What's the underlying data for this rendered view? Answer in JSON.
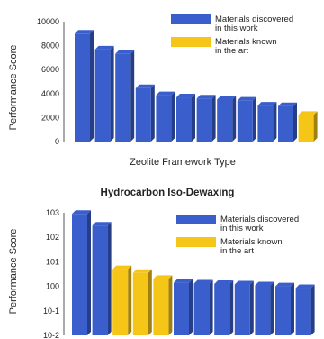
{
  "chart_data": [
    {
      "type": "bar",
      "title": "",
      "xlabel": "Zeolite Framework Type",
      "ylabel": "Performance Score",
      "ylim": [
        0,
        11000
      ],
      "yticks": [
        "0",
        "2000",
        "4000",
        "6000",
        "8000",
        "10000"
      ],
      "legend_position": "top-right",
      "series": [
        {
          "name": "Materials discovered\nin this work",
          "color": "#3a5fcd",
          "values": [
            9900,
            8450,
            8050,
            4900,
            4250,
            4050,
            3950,
            3850,
            3750,
            3300,
            3250,
            null
          ]
        },
        {
          "name": "Materials known\nin the art",
          "color": "#f5c518",
          "values": [
            null,
            null,
            null,
            null,
            null,
            null,
            null,
            null,
            null,
            null,
            null,
            2450
          ]
        }
      ]
    },
    {
      "type": "bar",
      "title": "Hydrocarbon Iso-Dewaxing",
      "xlabel": "",
      "ylabel": "Performance Score",
      "yscale": "log",
      "ylim": [
        0.01,
        1000
      ],
      "yticks": [
        "10-2",
        "10-1",
        "100",
        "101",
        "102",
        "103"
      ],
      "legend_position": "top-right",
      "series": [
        {
          "name": "Materials discovered\nin this work",
          "color": "#3a5fcd",
          "values": [
            900,
            300,
            null,
            null,
            null,
            1.4,
            1.3,
            1.25,
            1.2,
            1.1,
            1.0,
            0.85
          ]
        },
        {
          "name": "Materials known\nin the art",
          "color": "#f5c518",
          "values": [
            null,
            null,
            5,
            3.5,
            2.0,
            null,
            null,
            null,
            null,
            null,
            null,
            null
          ]
        }
      ]
    }
  ]
}
